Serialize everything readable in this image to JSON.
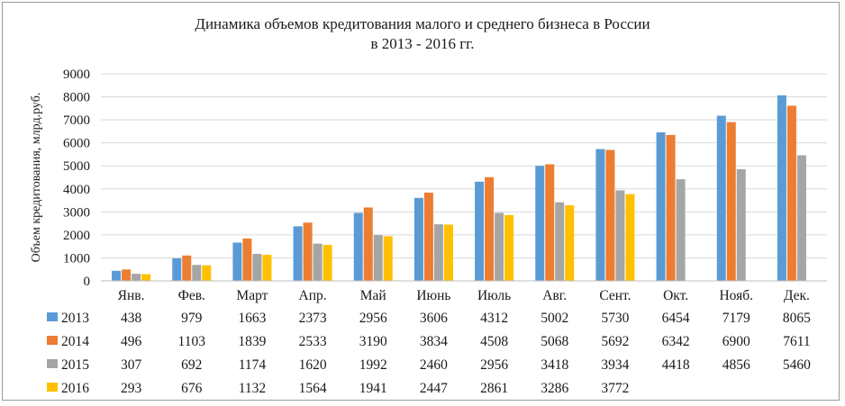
{
  "chart_data": {
    "type": "bar",
    "title_line1": "Динамика объемов кредитования малого и среднего бизнеса в России",
    "title_line2": "в 2013 - 2016 гг.",
    "ylabel": "Объем кредитования, млрд.руб.",
    "xlabel": "",
    "ylim": [
      0,
      9000
    ],
    "yticks": [
      "0",
      "1000",
      "2000",
      "3000",
      "4000",
      "5000",
      "6000",
      "7000",
      "8000",
      "9000"
    ],
    "grid": true,
    "legend": "data-table-left",
    "categories": [
      "Янв.",
      "Фев.",
      "Март",
      "Апр.",
      "Май",
      "Июнь",
      "Июль",
      "Авг.",
      "Сент.",
      "Окт.",
      "Нояб.",
      "Дек."
    ],
    "series": [
      {
        "name": "2013",
        "color": "#5B9BD5",
        "values": [
          438,
          979,
          1663,
          2373,
          2956,
          3606,
          4312,
          5002,
          5730,
          6454,
          7179,
          8065
        ]
      },
      {
        "name": "2014",
        "color": "#ED7D31",
        "values": [
          496,
          1103,
          1839,
          2533,
          3190,
          3834,
          4508,
          5068,
          5692,
          6342,
          6900,
          7611
        ]
      },
      {
        "name": "2015",
        "color": "#A5A5A5",
        "values": [
          307,
          692,
          1174,
          1620,
          1992,
          2460,
          2956,
          3418,
          3934,
          4418,
          4856,
          5460
        ]
      },
      {
        "name": "2016",
        "color": "#FFC000",
        "values": [
          293,
          676,
          1132,
          1564,
          1941,
          2447,
          2861,
          3286,
          3772,
          null,
          null,
          null
        ]
      }
    ]
  }
}
